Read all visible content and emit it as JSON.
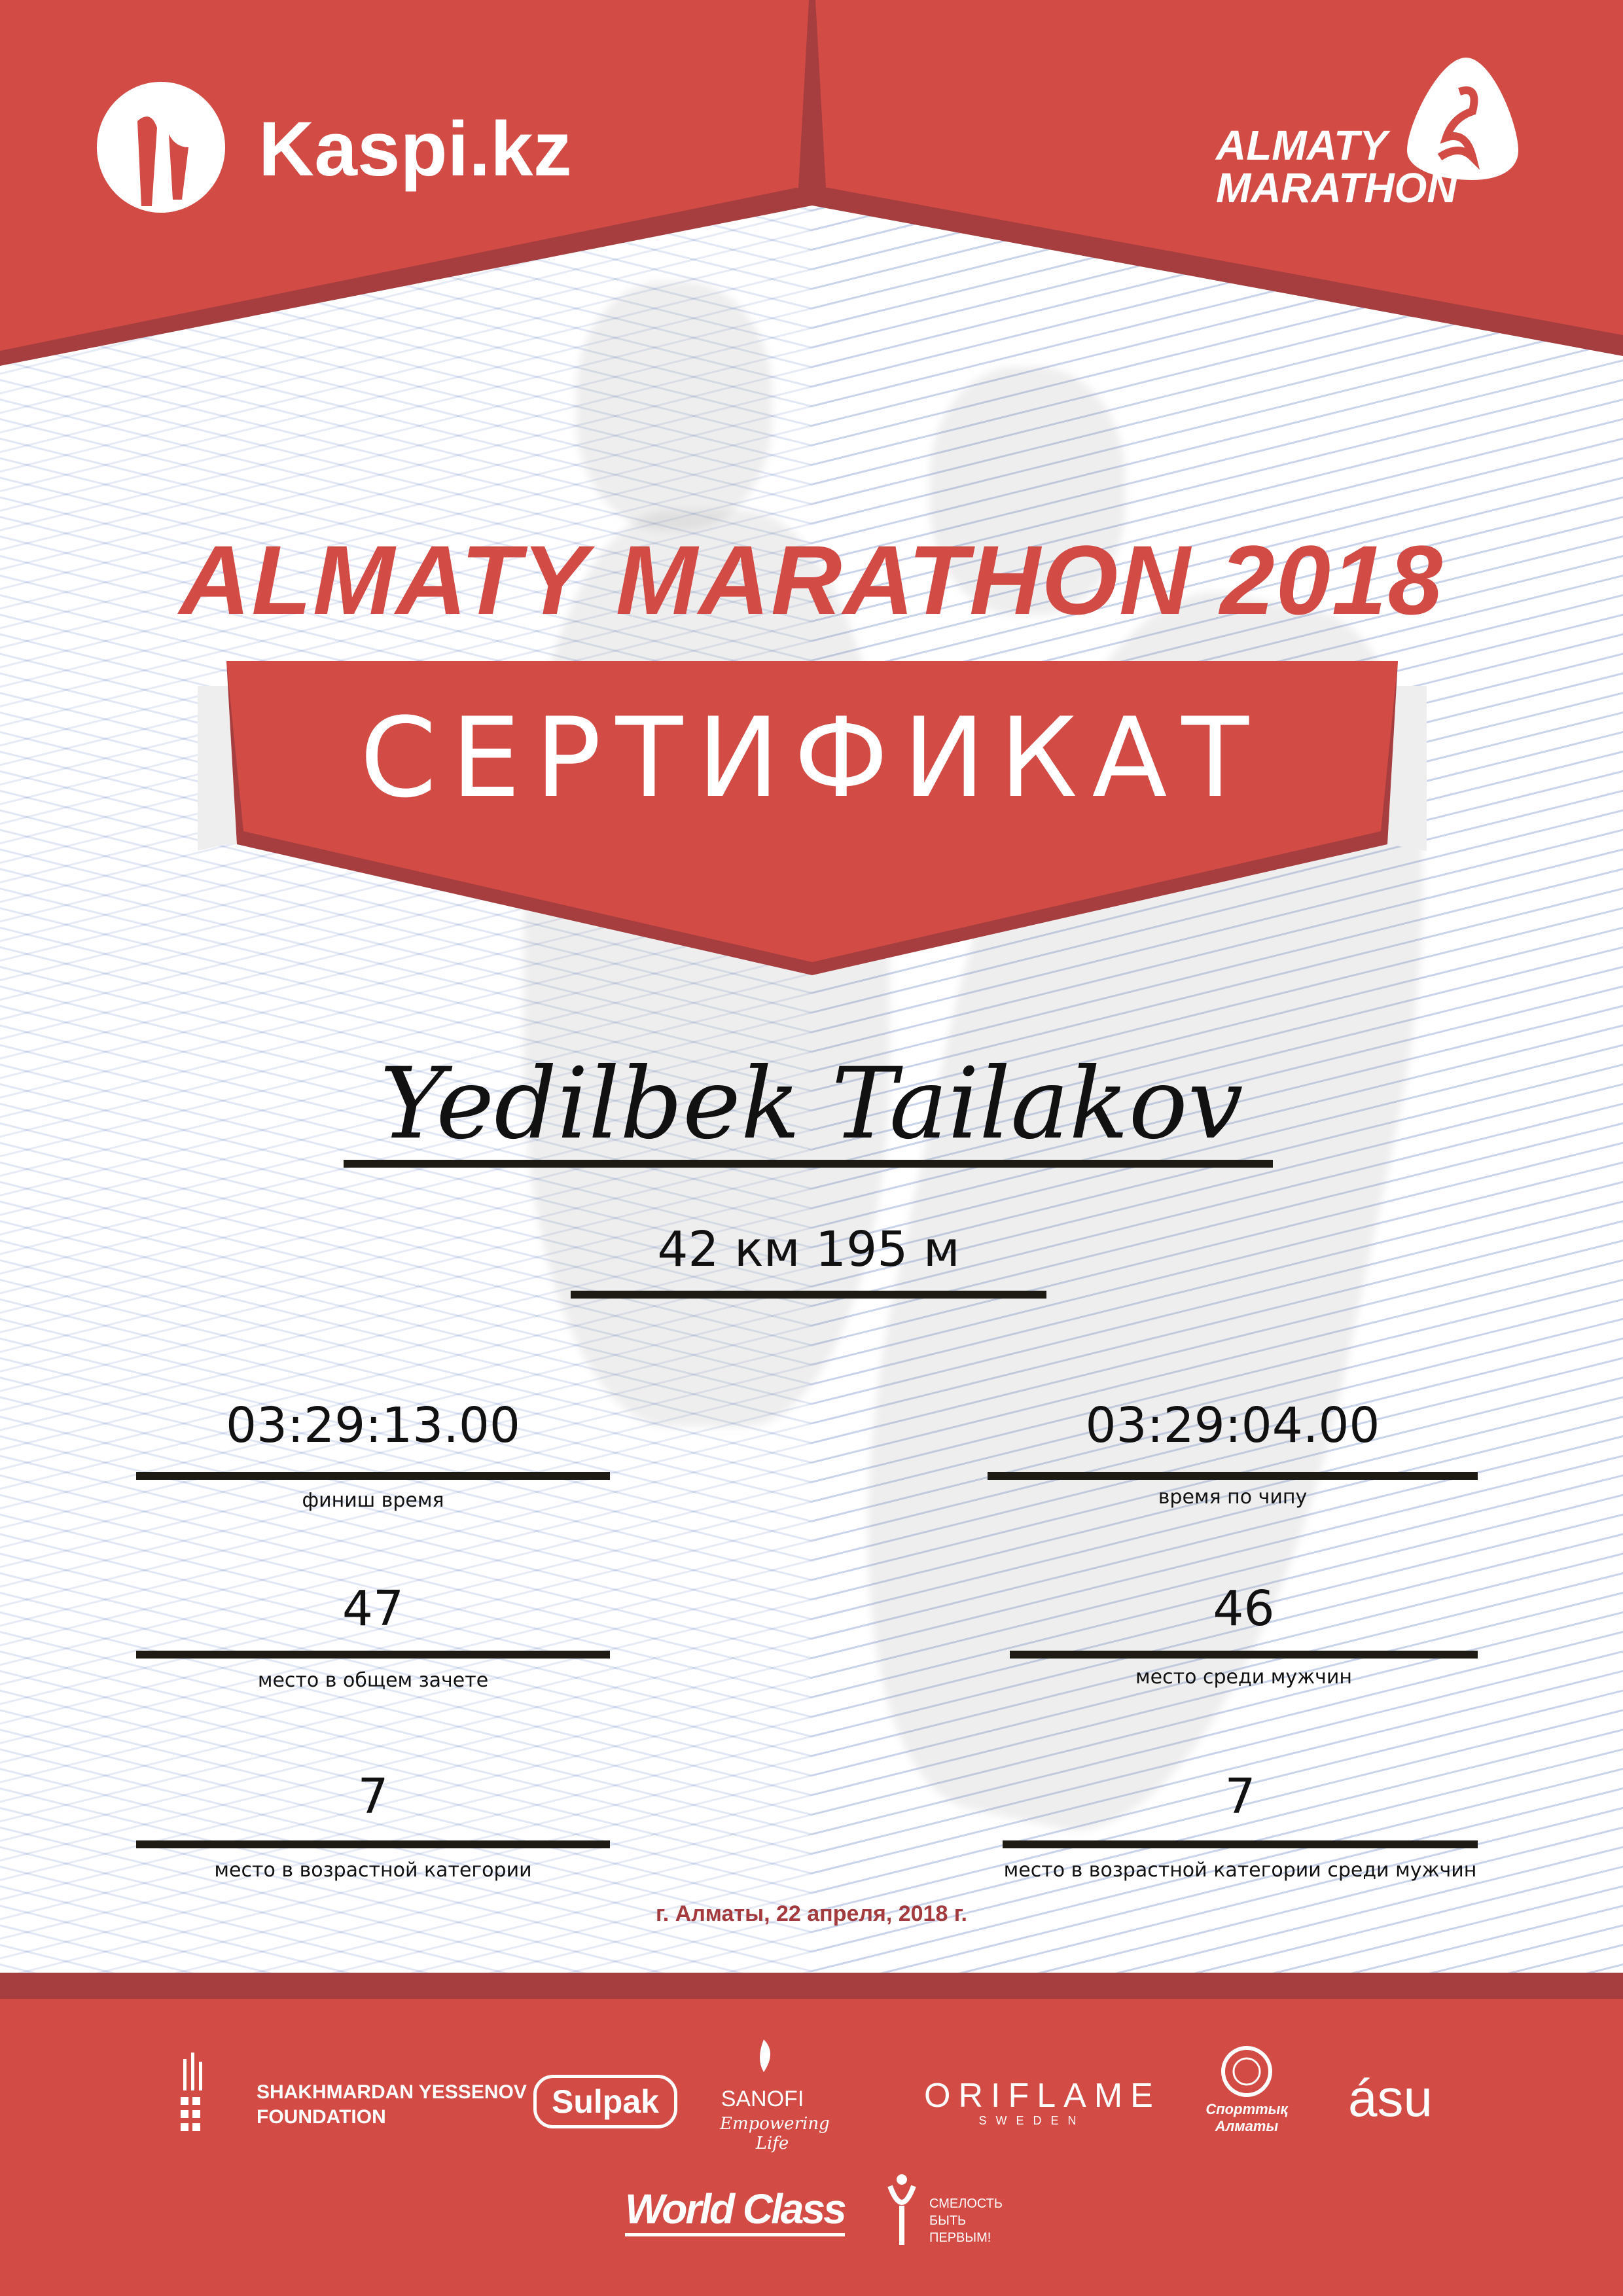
{
  "header": {
    "left_logo": "Kaspi.kz",
    "right_logo_line1": "ALMATY",
    "right_logo_line2": "MARATHON"
  },
  "title": "ALMATY MARATHON 2018",
  "certificate_label": "СЕРТИФИКАТ",
  "participant_name": "Yedilbek Tailakov",
  "distance": "42 км 195 м",
  "results": {
    "finish_time": {
      "value": "03:29:13.00",
      "label": "финиш время"
    },
    "chip_time": {
      "value": "03:29:04.00",
      "label": "время по чипу"
    },
    "overall_place": {
      "value": "47",
      "label": "место в общем зачете"
    },
    "male_place": {
      "value": "46",
      "label": "место среди мужчин"
    },
    "age_place": {
      "value": "7",
      "label": "место в возрастной категории"
    },
    "age_male_place": {
      "value": "7",
      "label": "место в возрастной категории среди мужчин"
    }
  },
  "date_place": "г. Алматы, 22 апреля, 2018 г.",
  "sponsors": {
    "yessenov_line1": "SHAKHMARDAN YESSENOV",
    "yessenov_line2": "FOUNDATION",
    "sulpak": "Sulpak",
    "sanofi": "SANOFI",
    "sanofi_tagline": "Empowering Life",
    "oriflame": "ORIFLAME",
    "oriflame_sub": "SWEDEN",
    "sport_almaty": "Спорттық Алматы",
    "asu": "ásu",
    "worldclass": "World Class",
    "fund_line1": "СМЕЛОСТЬ",
    "fund_line2": "БЫТЬ",
    "fund_line3": "ПЕРВЫМ!"
  },
  "colors": {
    "brand_red": "#d24b45",
    "dark_red": "#a63e3f",
    "date_red": "#a33a3d",
    "line": "#1e1a14"
  }
}
